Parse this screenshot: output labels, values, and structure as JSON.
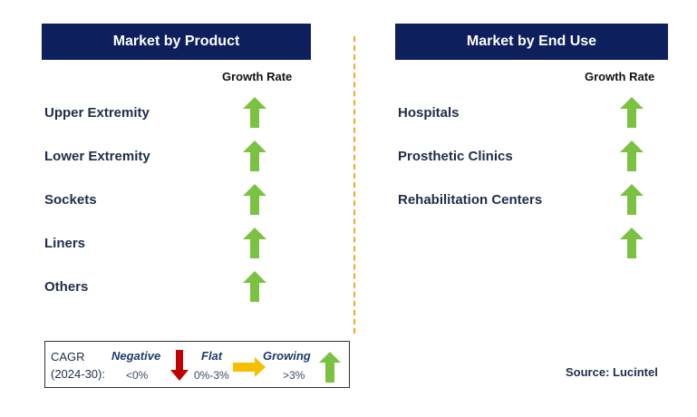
{
  "left_panel": {
    "title": "Market by Product",
    "growth_header": "Growth Rate",
    "items": [
      "Upper Extremity",
      "Lower Extremity",
      "Sockets",
      "Liners",
      "Others"
    ]
  },
  "right_panel": {
    "title": "Market by End Use",
    "growth_header": "Growth Rate",
    "items": [
      "Hospitals",
      "Prosthetic Clinics",
      "Rehabilitation Centers"
    ]
  },
  "legend": {
    "cagr_label": "CAGR",
    "period": "(2024-30):",
    "negative_label": "Negative",
    "negative_range": "<0%",
    "flat_label": "Flat",
    "flat_range": "0%-3%",
    "growing_label": "Growing",
    "growing_range": ">3%"
  },
  "source": "Source: Lucintel",
  "colors": {
    "header_bg": "#0d1f5c",
    "growth_up": "#7cc242",
    "negative": "#c00000",
    "flat": "#f5c000",
    "divider": "#f5a623"
  }
}
